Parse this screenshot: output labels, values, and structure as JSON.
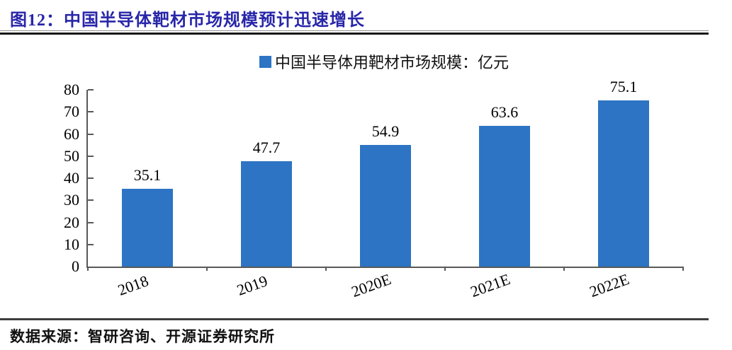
{
  "figure": {
    "title": "图12：中国半导体靶材市场规模预计迅速增长",
    "source": "数据来源：智研咨询、开源证券研究所"
  },
  "legend": {
    "label": "中国半导体用靶材市场规模：亿元",
    "swatch_color": "#2D74C4"
  },
  "chart_data": {
    "type": "bar",
    "categories": [
      "2018",
      "2019",
      "2020E",
      "2021E",
      "2022E"
    ],
    "values": [
      35.1,
      47.7,
      54.9,
      63.6,
      75.1
    ],
    "title": "中国半导体用靶材市场规模：亿元",
    "xlabel": "",
    "ylabel": "",
    "ylim": [
      0,
      80
    ],
    "yticks": [
      0,
      10,
      20,
      30,
      40,
      50,
      60,
      70,
      80
    ],
    "grid": false,
    "legend_position": "top-center",
    "bar_color": "#2D74C4",
    "value_label_color": "#000000",
    "axis_color": "#595959"
  },
  "colors": {
    "title": "#2826A8",
    "top_rule": "#161616",
    "footer_rule": "#3d3d3d",
    "bar": "#2D74C4",
    "axis": "#595959",
    "text": "#000000"
  }
}
